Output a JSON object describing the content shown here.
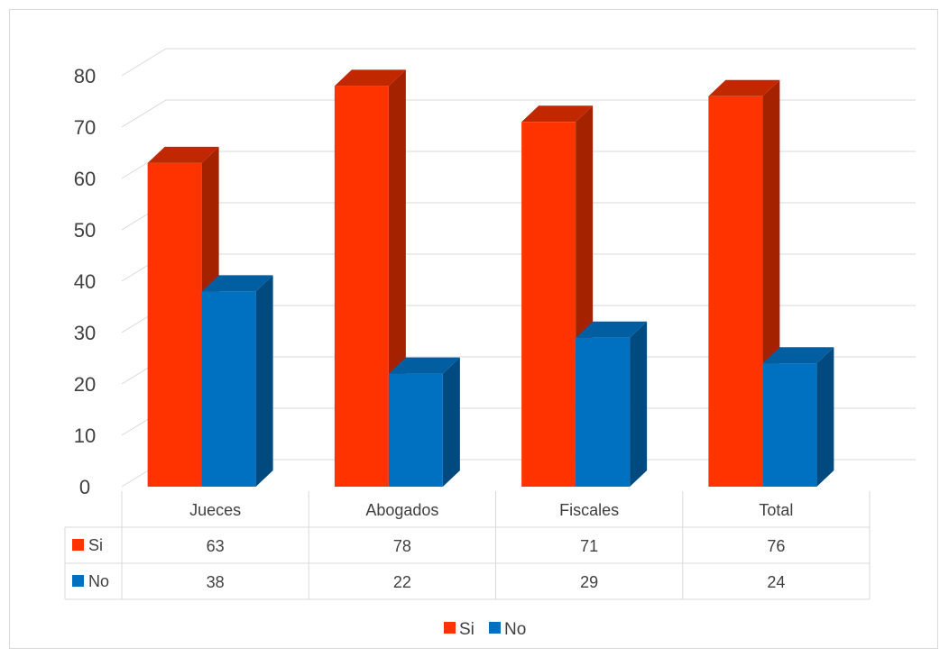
{
  "chart_data": {
    "type": "bar",
    "style": "3d-clustered-column-with-data-table",
    "categories": [
      "Jueces",
      "Abogados",
      "Fiscales",
      "Total"
    ],
    "series": [
      {
        "name": "Si",
        "values": [
          63,
          78,
          71,
          76
        ],
        "color": "#ff3300",
        "side_color": "#a52200",
        "top_color": "#c22800"
      },
      {
        "name": "No",
        "values": [
          38,
          22,
          29,
          24
        ],
        "color": "#0070c0",
        "side_color": "#004a80",
        "top_color": "#005ea1"
      }
    ],
    "ylim": [
      0,
      80
    ],
    "yticks": [
      0,
      10,
      20,
      30,
      40,
      50,
      60,
      70,
      80
    ],
    "data_table": {
      "rows": [
        {
          "label": "Si",
          "values": [
            "63",
            "78",
            "71",
            "76"
          ]
        },
        {
          "label": "No",
          "values": [
            "38",
            "22",
            "29",
            "24"
          ]
        }
      ]
    },
    "grid": true,
    "legend": {
      "position": "bottom",
      "entries": [
        "Si",
        "No"
      ]
    }
  }
}
